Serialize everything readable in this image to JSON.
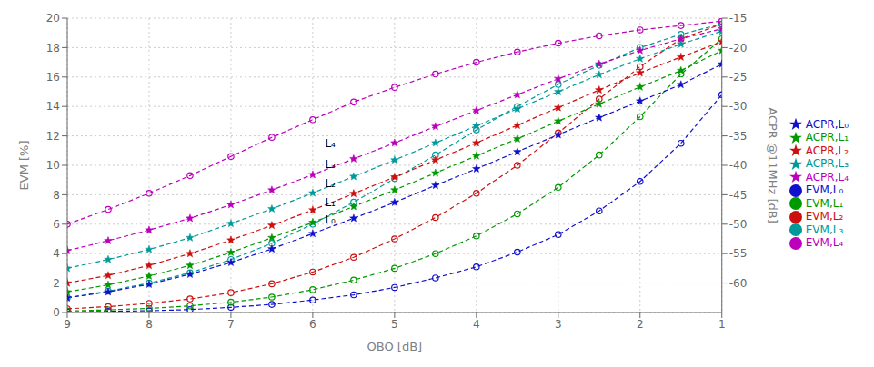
{
  "chart_data": {
    "type": "line",
    "xlabel": "OBO [dB]",
    "ylabel": "EVM [%]",
    "y2label": "ACPR @11MHz [dB]",
    "x": [
      9.0,
      8.5,
      8.0,
      7.5,
      7.0,
      6.5,
      6.0,
      5.5,
      5.0,
      4.5,
      4.0,
      3.5,
      3.0,
      2.5,
      2.0,
      1.5,
      1.0
    ],
    "series": [
      {
        "name": "EVM,L₀",
        "color": "#1010CC",
        "marker": "circle",
        "line_style": "dashed",
        "values": [
          0.05,
          0.08,
          0.12,
          0.2,
          0.35,
          0.55,
          0.85,
          1.2,
          1.7,
          2.35,
          3.1,
          4.1,
          5.3,
          6.9,
          8.9,
          11.5,
          14.8
        ]
      },
      {
        "name": "EVM,L₁",
        "color": "#009900",
        "marker": "circle",
        "line_style": "dashed",
        "values": [
          0.1,
          0.18,
          0.28,
          0.45,
          0.7,
          1.05,
          1.55,
          2.2,
          3.0,
          4.0,
          5.2,
          6.7,
          8.5,
          10.7,
          13.3,
          16.2,
          18.6
        ]
      },
      {
        "name": "EVM,L₂",
        "color": "#CC1010",
        "marker": "circle",
        "line_style": "dashed",
        "values": [
          0.25,
          0.4,
          0.62,
          0.92,
          1.35,
          1.95,
          2.75,
          3.75,
          5.0,
          6.45,
          8.1,
          10.0,
          12.2,
          14.5,
          16.7,
          18.6,
          19.6
        ]
      },
      {
        "name": "EVM,L₃",
        "color": "#009999",
        "marker": "circle",
        "line_style": "dashed",
        "values": [
          1.0,
          1.45,
          2.0,
          2.7,
          3.6,
          4.7,
          6.0,
          7.5,
          9.1,
          10.7,
          12.4,
          14.0,
          15.5,
          16.8,
          18.0,
          18.9,
          19.6
        ]
      },
      {
        "name": "EVM,L₄",
        "color": "#BB00BB",
        "marker": "circle",
        "line_style": "dashed",
        "values": [
          6.0,
          7.0,
          8.1,
          9.3,
          10.6,
          11.9,
          13.1,
          14.3,
          15.3,
          16.2,
          17.0,
          17.7,
          18.3,
          18.8,
          19.2,
          19.5,
          19.8
        ]
      },
      {
        "name": "ACPR,L₀",
        "color": "#1010CC",
        "marker": "star",
        "line_style": "dashed",
        "axis": "y2",
        "values": [
          -62.5,
          -61.5,
          -60.2,
          -58.5,
          -56.5,
          -54.2,
          -51.6,
          -49.0,
          -46.3,
          -43.4,
          -40.6,
          -37.7,
          -34.8,
          -31.9,
          -29.1,
          -26.3,
          -22.8
        ]
      },
      {
        "name": "ACPR,L₁",
        "color": "#009900",
        "marker": "star",
        "line_style": "dashed",
        "axis": "y2",
        "values": [
          -61.5,
          -60.3,
          -58.8,
          -57.0,
          -54.8,
          -52.3,
          -49.7,
          -47.0,
          -44.2,
          -41.3,
          -38.4,
          -35.5,
          -32.5,
          -29.6,
          -26.7,
          -23.9,
          -20.5
        ]
      },
      {
        "name": "ACPR,L₂",
        "color": "#CC1010",
        "marker": "star",
        "line_style": "dashed",
        "axis": "y2",
        "values": [
          -60.0,
          -58.7,
          -57.0,
          -55.0,
          -52.7,
          -50.2,
          -47.6,
          -44.8,
          -42.0,
          -39.1,
          -36.2,
          -33.2,
          -30.2,
          -27.2,
          -24.3,
          -21.6,
          -19.0
        ]
      },
      {
        "name": "ACPR,L₃",
        "color": "#009999",
        "marker": "star",
        "line_style": "dashed",
        "axis": "y2",
        "values": [
          -57.5,
          -56.0,
          -54.3,
          -52.3,
          -49.9,
          -47.4,
          -44.7,
          -41.9,
          -39.1,
          -36.2,
          -33.3,
          -30.4,
          -27.5,
          -24.6,
          -21.9,
          -19.4,
          -17.2
        ]
      },
      {
        "name": "ACPR,L₄",
        "color": "#BB00BB",
        "marker": "star",
        "line_style": "dashed",
        "axis": "y2",
        "values": [
          -54.5,
          -52.8,
          -51.0,
          -49.0,
          -46.7,
          -44.2,
          -41.6,
          -38.9,
          -36.2,
          -33.4,
          -30.7,
          -28.0,
          -25.3,
          -22.8,
          -20.5,
          -18.5,
          -16.8
        ]
      }
    ],
    "xlim": [
      9,
      1
    ],
    "xticks": [
      9,
      8,
      7,
      6,
      5,
      4,
      3,
      2,
      1
    ],
    "ylim": [
      0,
      20
    ],
    "yticks": [
      0,
      2,
      4,
      6,
      8,
      10,
      12,
      14,
      16,
      18,
      20
    ],
    "y2lim": [
      -65,
      -15
    ],
    "y2ticks": [
      -15,
      -20,
      -25,
      -30,
      -35,
      -40,
      -45,
      -50,
      -55,
      -60
    ],
    "grid": true,
    "legend": "right",
    "annotations": [
      {
        "text": "L₄",
        "x": 5.85,
        "y": 11.5
      },
      {
        "text": "L₃",
        "x": 5.85,
        "y": 10.1
      },
      {
        "text": "L₂",
        "x": 5.85,
        "y": 8.8
      },
      {
        "text": "L₁",
        "x": 5.85,
        "y": 7.5
      },
      {
        "text": "L₀",
        "x": 5.85,
        "y": 6.3
      }
    ]
  }
}
